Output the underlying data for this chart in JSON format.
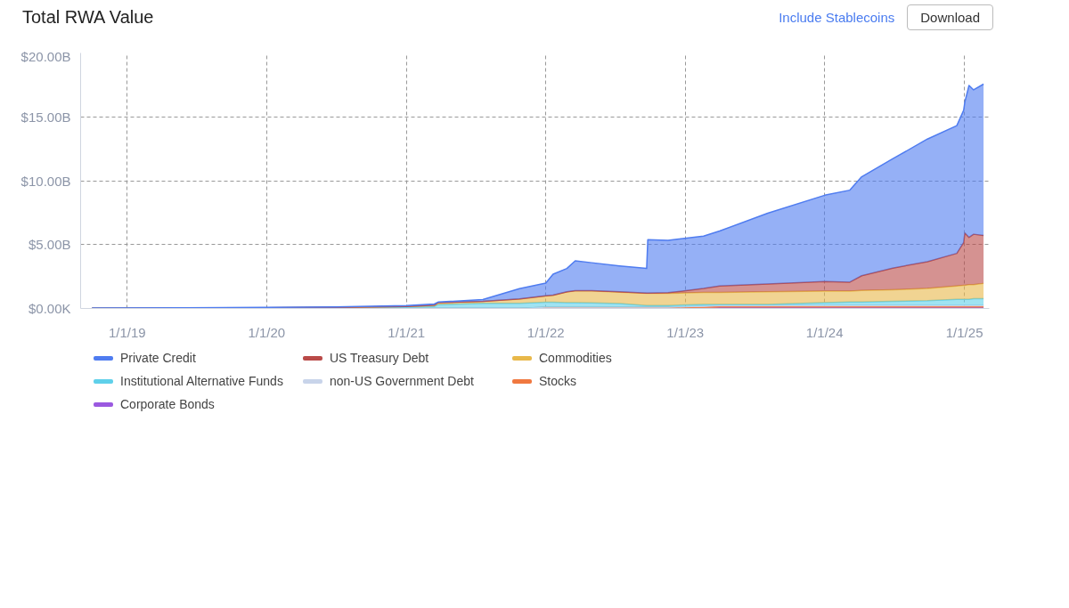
{
  "chart_data": {
    "type": "area",
    "title": "Total RWA Value",
    "stacked": true,
    "grid": true,
    "legend": "bottom",
    "marker": "none",
    "annotations": [
      "Include Stablecoins",
      "Download"
    ],
    "x": [
      "2018-10-01",
      "2019-06-01",
      "2020-01-01",
      "2020-07-01",
      "2021-01-01",
      "2021-03-15",
      "2021-03-25",
      "2021-07-20",
      "2021-10-24",
      "2022-01-01",
      "2022-01-20",
      "2022-02-25",
      "2022-03-19",
      "2022-05-01",
      "2022-07-13",
      "2022-09-22",
      "2022-09-25",
      "2022-11-17",
      "2023-02-18",
      "2023-04-01",
      "2023-08-05",
      "2024-01-01",
      "2024-03-07",
      "2024-04-07",
      "2024-06-27",
      "2024-09-26",
      "2024-12-12",
      "2024-12-30",
      "2025-01-02",
      "2025-01-13",
      "2025-01-25",
      "2025-02-20"
    ],
    "xlim": [
      "2018-09-01",
      "2025-03-07"
    ],
    "xticks": [
      {
        "value": "2019-01-01",
        "label": "1/1/19"
      },
      {
        "value": "2020-01-01",
        "label": "1/1/20"
      },
      {
        "value": "2021-01-01",
        "label": "1/1/21"
      },
      {
        "value": "2022-01-01",
        "label": "1/1/22"
      },
      {
        "value": "2023-01-01",
        "label": "1/1/23"
      },
      {
        "value": "2024-01-01",
        "label": "1/1/24"
      },
      {
        "value": "2025-01-01",
        "label": "1/1/25"
      }
    ],
    "ylim": [
      0,
      20
    ],
    "yticks": [
      {
        "value": 0,
        "label": "$0.00K"
      },
      {
        "value": 5,
        "label": "$5.00B"
      },
      {
        "value": 10,
        "label": "$10.00B"
      },
      {
        "value": 15,
        "label": "$15.00B"
      },
      {
        "value": 20,
        "label": "$20.00B"
      }
    ],
    "series": [
      {
        "name": "Corporate Bonds",
        "color": "#9b59e0",
        "values": [
          0,
          0,
          0,
          0,
          0,
          0,
          0,
          0,
          0,
          0,
          0,
          0,
          0,
          0,
          0,
          0,
          0,
          0,
          0,
          0.05,
          0.05,
          0.05,
          0.05,
          0.05,
          0.05,
          0.05,
          0.05,
          0.05,
          0.05,
          0.05,
          0.05,
          0.05
        ]
      },
      {
        "name": "Stocks",
        "color": "#f07840",
        "values": [
          0,
          0,
          0,
          0,
          0,
          0,
          0,
          0,
          0,
          0.1,
          0.1,
          0.1,
          0.1,
          0.1,
          0.1,
          0.1,
          0.1,
          0.1,
          0.1,
          0.1,
          0.1,
          0.1,
          0.1,
          0.1,
          0.1,
          0.1,
          0.1,
          0.1,
          0.1,
          0.1,
          0.1,
          0.1
        ]
      },
      {
        "name": "non-US Government Debt",
        "color": "#c8d4ea",
        "values": [
          0,
          0,
          0,
          0,
          0,
          0,
          0,
          0,
          0,
          0,
          0,
          0,
          0,
          0,
          0,
          0,
          0,
          0,
          0.1,
          0.1,
          0.1,
          0.1,
          0.1,
          0.1,
          0.1,
          0.1,
          0.1,
          0.1,
          0.1,
          0.1,
          0.1,
          0.1
        ]
      },
      {
        "name": "Institutional Alternative Funds",
        "color": "#5fd0ea",
        "values": [
          0.01,
          0.02,
          0.03,
          0.05,
          0.1,
          0.15,
          0.3,
          0.4,
          0.4,
          0.38,
          0.38,
          0.36,
          0.36,
          0.33,
          0.28,
          0.13,
          0.13,
          0.13,
          0.11,
          0.06,
          0.06,
          0.21,
          0.26,
          0.26,
          0.31,
          0.36,
          0.46,
          0.46,
          0.46,
          0.46,
          0.51,
          0.51
        ]
      },
      {
        "name": "Commodities",
        "color": "#e8b84a",
        "values": [
          0.01,
          0.01,
          0.02,
          0.03,
          0.05,
          0.1,
          0.15,
          0.15,
          0.33,
          0.5,
          0.55,
          0.82,
          0.92,
          0.95,
          0.9,
          0.95,
          0.95,
          0.95,
          0.95,
          0.95,
          1.0,
          0.9,
          0.85,
          0.9,
          0.9,
          0.95,
          1.05,
          1.1,
          1.1,
          1.15,
          1.1,
          1.2
        ]
      },
      {
        "name": "US Treasury Debt",
        "color": "#b94a48",
        "values": [
          0,
          0,
          0,
          0,
          0.01,
          0.01,
          0.01,
          0.01,
          0.02,
          0.02,
          0.02,
          0.02,
          0.02,
          0.02,
          0.02,
          0.03,
          0.03,
          0.05,
          0.3,
          0.5,
          0.6,
          0.75,
          0.7,
          1.15,
          1.7,
          2.1,
          2.55,
          3.35,
          4.1,
          3.7,
          3.95,
          3.75
        ]
      },
      {
        "name": "Private Credit",
        "color": "#4f7cf0",
        "values": [
          0.01,
          0.02,
          0.03,
          0.04,
          0.06,
          0.09,
          0.04,
          0.14,
          0.8,
          0.98,
          1.63,
          1.83,
          2.33,
          2.18,
          2.03,
          1.92,
          4.17,
          4.1,
          4.1,
          4.3,
          5.55,
          6.75,
          7.2,
          7.75,
          8.55,
          9.6,
          10.0,
          10.35,
          10.25,
          11.9,
          11.3,
          11.85
        ]
      }
    ]
  }
}
